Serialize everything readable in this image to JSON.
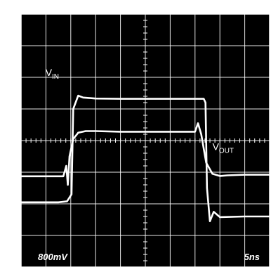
{
  "chart_data": {
    "type": "line",
    "title": "",
    "grid": true,
    "x_divisions": 10,
    "y_divisions": 8,
    "x_scale_label": "5ns",
    "y_scale_label": "800mV",
    "xlim": [
      0,
      10
    ],
    "ylim": [
      0,
      8
    ],
    "colors": {
      "background": "#000000",
      "grid": "#ffffff",
      "trace": "#ffffff"
    },
    "series": [
      {
        "label_main": "V",
        "label_sub": "IN",
        "x": [
          0,
          1.5,
          1.85,
          2.03,
          2.1,
          2.3,
          2.5,
          3.0,
          4.0,
          5.0,
          6.0,
          7.0,
          7.35,
          7.42,
          7.48,
          7.6,
          7.75,
          8.0,
          9.0,
          10.0
        ],
        "y": [
          2.05,
          2.05,
          2.08,
          2.3,
          5.0,
          5.42,
          5.36,
          5.33,
          5.32,
          5.32,
          5.32,
          5.32,
          5.32,
          5.2,
          2.5,
          1.45,
          1.75,
          1.58,
          1.6,
          1.6
        ]
      },
      {
        "label_main": "V",
        "label_sub": "OUT",
        "x": [
          0,
          1.5,
          1.7,
          1.82,
          1.88,
          1.95,
          2.1,
          2.3,
          2.6,
          3.0,
          4.0,
          5.0,
          6.0,
          7.0,
          7.12,
          7.25,
          7.45,
          7.7,
          8.0,
          8.3,
          9.0,
          10.0
        ],
        "y": [
          2.87,
          2.87,
          2.87,
          3.2,
          2.6,
          3.5,
          4.05,
          4.25,
          4.3,
          4.3,
          4.28,
          4.28,
          4.28,
          4.28,
          4.55,
          4.2,
          3.3,
          2.95,
          2.88,
          2.9,
          2.92,
          2.92
        ]
      }
    ]
  }
}
